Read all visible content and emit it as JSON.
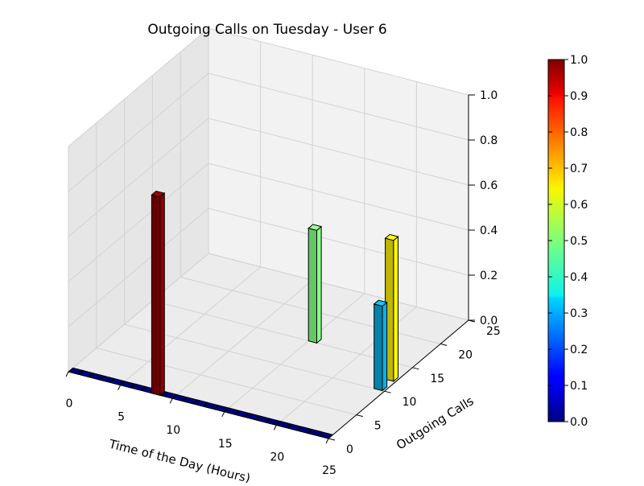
{
  "chart_data": {
    "type": "bar",
    "title": "Outgoing Calls on Tuesday - User 6",
    "xlabel": "Time of the Day (Hours)",
    "ylabel": "Outgoing Calls",
    "zlabel": "",
    "xlim": [
      0,
      25
    ],
    "ylim": [
      0,
      25
    ],
    "zlim": [
      0,
      1.0
    ],
    "xticks": [
      "0",
      "5",
      "10",
      "15",
      "20",
      "25"
    ],
    "yticks": [
      "0",
      "5",
      "10",
      "15",
      "20",
      "25"
    ],
    "zticks": [
      "0.0",
      "0.2",
      "0.4",
      "0.6",
      "0.8",
      "1.0"
    ],
    "grid": true,
    "colormap": "jet",
    "colorbar": {
      "min": 0.0,
      "max": 1.0,
      "ticks": [
        "0.0",
        "0.1",
        "0.2",
        "0.3",
        "0.4",
        "0.5",
        "0.6",
        "0.7",
        "0.8",
        "0.9",
        "1.0"
      ]
    },
    "bars": [
      {
        "x": 8,
        "y": 0,
        "z": 0.88,
        "color": "#800000"
      },
      {
        "x": 15,
        "y": 15,
        "z": 0.5,
        "color": "#7ff77f"
      },
      {
        "x": 24,
        "y": 10,
        "z": 0.375,
        "color": "#0ca0d0"
      },
      {
        "x": 24,
        "y": 12,
        "z": 0.625,
        "color": "#f1e400"
      }
    ],
    "floor_bars": {
      "y": 0,
      "x_start": 0,
      "x_end": 25,
      "z": 0.0,
      "color": "#00007f"
    }
  }
}
